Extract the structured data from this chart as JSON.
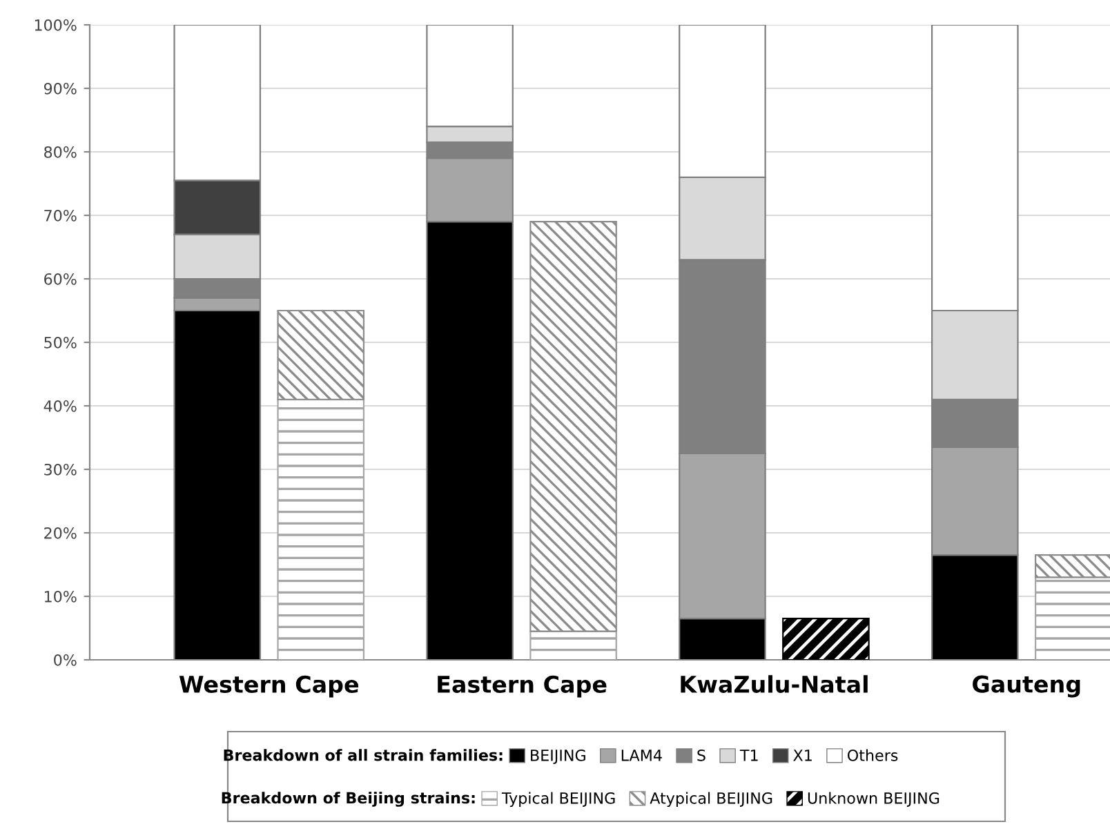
{
  "chart_data": [
    {
      "type": "bar",
      "stacked": true,
      "categories": [
        "Western Cape",
        "Eastern Cape",
        "KwaZulu-Natal",
        "Gauteng"
      ],
      "series": [
        {
          "name": "BEIJING",
          "color": "#000000",
          "values": [
            55,
            69,
            6.5,
            16.5
          ]
        },
        {
          "name": "LAM4",
          "color": "#a6a6a6",
          "values": [
            2,
            10,
            26,
            17
          ]
        },
        {
          "name": "S",
          "color": "#808080",
          "values": [
            3,
            2.5,
            30.5,
            7.5
          ]
        },
        {
          "name": "T1",
          "color": "#d9d9d9",
          "values": [
            7,
            2.5,
            13,
            14
          ]
        },
        {
          "name": "X1",
          "color": "#404040",
          "values": [
            8.5,
            null,
            null,
            null
          ]
        },
        {
          "name": "Others",
          "color": "#ffffff",
          "values": [
            24.5,
            16,
            24,
            45
          ]
        }
      ],
      "legend_title": "Breakdown of all strain families:",
      "ylim": [
        0,
        100
      ],
      "yticks": [
        {
          "value": 0,
          "label": "0%"
        },
        {
          "value": 10,
          "label": "10%"
        },
        {
          "value": 20,
          "label": "20%"
        },
        {
          "value": 30,
          "label": "30%"
        },
        {
          "value": 40,
          "label": "40%"
        },
        {
          "value": 50,
          "label": "50%"
        },
        {
          "value": 60,
          "label": "60%"
        },
        {
          "value": 70,
          "label": "70%"
        },
        {
          "value": 80,
          "label": "80%"
        },
        {
          "value": 90,
          "label": "90%"
        },
        {
          "value": 100,
          "label": "100%"
        }
      ],
      "grid": "y",
      "legend": "bottom"
    },
    {
      "type": "bar",
      "stacked": true,
      "categories": [
        null,
        null,
        null,
        null
      ],
      "series": [
        {
          "name": "Typical BEIJING",
          "color": "#a6a6a6",
          "values": [
            41,
            4.5,
            null,
            13
          ]
        },
        {
          "name": "Atypical BEIJING",
          "color": "#8c8c8c",
          "values": [
            14,
            64.5,
            null,
            3.5
          ]
        },
        {
          "name": "Unknown BEIJING",
          "color": "#000000",
          "values": [
            null,
            null,
            6.5,
            null
          ]
        }
      ],
      "legend_title": "Breakdown of Beijing strains:",
      "ylim": [
        0,
        100
      ],
      "tick_labels": false,
      "legend": "bottom"
    }
  ]
}
